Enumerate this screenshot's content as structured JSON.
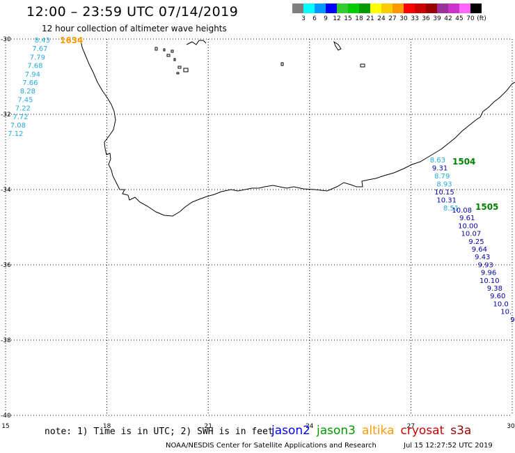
{
  "header": {
    "title": "12:00 – 23:59 UTC 07/14/2019",
    "subtitle": "12 hour collection of altimeter wave heights"
  },
  "colorbar": {
    "swatches": [
      "#7f7f7f",
      "#00ffff",
      "#0099ff",
      "#0000ff",
      "#33cc33",
      "#00cc00",
      "#009900",
      "#ffff00",
      "#ffcc00",
      "#ff9900",
      "#ff0000",
      "#cc0000",
      "#990000",
      "#993399",
      "#cc33cc",
      "#ff66ff",
      "#000000"
    ],
    "labels": [
      "3",
      "6",
      "9",
      "12",
      "15",
      "18",
      "21",
      "24",
      "27",
      "30",
      "33",
      "36",
      "39",
      "42",
      "45",
      "70",
      "(ft)"
    ]
  },
  "map": {
    "lon_range": [
      15,
      30
    ],
    "lat_range": [
      -40,
      -30
    ],
    "lon_ticks": [
      "15",
      "18",
      "21",
      "24",
      "27",
      "30"
    ],
    "lat_ticks": [
      "-30",
      "-32",
      "-34",
      "-36",
      "-38",
      "-40"
    ],
    "tracks": [
      {
        "id": "1634",
        "satellite": "altika",
        "label_color": "#ff9900",
        "values": [
          "8.43",
          "7.67",
          "7.79",
          "7.68",
          "7.94",
          "7.66",
          "8.28",
          "7.45",
          "7.22",
          "7.72",
          "7.08",
          "7.12"
        ]
      },
      {
        "id": "1504",
        "satellite": "jason3",
        "label_color": "#008000",
        "values": [
          "8.63",
          "9.31",
          "8.79",
          "8.93",
          "10.15",
          "10.31",
          "8.51"
        ]
      },
      {
        "id": "1505",
        "satellite": "jason3",
        "label_color": "#008000",
        "values": [
          "10.08",
          "9.61",
          "10.00",
          "10.07",
          "9.25",
          "9.64",
          "9.43",
          "9.93",
          "9.96",
          "10.10",
          "9.38",
          "9.60",
          "10.0",
          "10.",
          "9"
        ]
      }
    ]
  },
  "footer": {
    "note": "note: 1) Time is in UTC; 2) SWH is in feet",
    "satellites": [
      {
        "name": "jason2",
        "color": "#0000ff"
      },
      {
        "name": "jason3",
        "color": "#009900"
      },
      {
        "name": "altika",
        "color": "#ff9900"
      },
      {
        "name": "cryosat",
        "color": "#cc0000"
      },
      {
        "name": "s3a",
        "color": "#990000"
      }
    ],
    "credit": "NOAA/NESDIS Center for Satellite Applications and Research",
    "timestamp": "Jul 15 12:27:52 UTC 2019"
  }
}
